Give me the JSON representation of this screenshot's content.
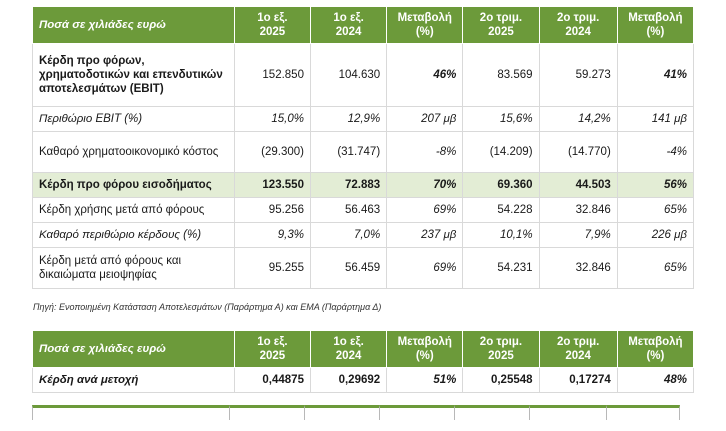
{
  "table1": {
    "headers": [
      {
        "l1": "Ποσά σε χιλιάδες ευρώ",
        "l2": ""
      },
      {
        "l1": "1ο εξ.",
        "l2": "2025"
      },
      {
        "l1": "1ο εξ.",
        "l2": "2024"
      },
      {
        "l1": "Μεταβολή",
        "l2": "(%)"
      },
      {
        "l1": "2ο τριμ.",
        "l2": "2025"
      },
      {
        "l1": "2ο τριμ.",
        "l2": "2024"
      },
      {
        "l1": "Μεταβολή",
        "l2": "(%)"
      }
    ],
    "rows": [
      {
        "label": "Κέρδη προ φόρων, χρηματοδοτικών και επενδυτικών αποτελεσμάτων (EBIT)",
        "v": [
          "152.850",
          "104.630",
          "46%",
          "83.569",
          "59.273",
          "41%"
        ]
      },
      {
        "label": "Περιθώριο EBIT (%)",
        "v": [
          "15,0%",
          "12,9%",
          "207 μβ",
          "15,6%",
          "14,2%",
          "141 μβ"
        ]
      },
      {
        "label": "Καθαρό χρηματοοικονομικό κόστος",
        "v": [
          "(29.300)",
          "(31.747)",
          "-8%",
          "(14.209)",
          "(14.770)",
          "-4%"
        ]
      },
      {
        "label": "Κέρδη προ φόρου εισοδήματος",
        "v": [
          "123.550",
          "72.883",
          "70%",
          "69.360",
          "44.503",
          "56%"
        ]
      },
      {
        "label": "Κέρδη χρήσης μετά από φόρους",
        "v": [
          "95.256",
          "56.463",
          "69%",
          "54.228",
          "32.846",
          "65%"
        ]
      },
      {
        "label": "Καθαρό περιθώριο κέρδους (%)",
        "v": [
          "9,3%",
          "7,0%",
          "237 μβ",
          "10,1%",
          "7,9%",
          "226 μβ"
        ]
      },
      {
        "label": "Κέρδη μετά από φόρους και δικαιώματα μειοψηφίας",
        "v": [
          "95.255",
          "56.459",
          "69%",
          "54.231",
          "32.846",
          "65%"
        ]
      }
    ]
  },
  "source_note": "Πηγή: Ενοποιημένη Κατάσταση Αποτελεσμάτων (Παράρτημα Α) και ΕΜΑ (Παράρτημα Δ)",
  "table2": {
    "headers": [
      {
        "l1": "Ποσά σε χιλιάδες ευρώ",
        "l2": ""
      },
      {
        "l1": "1ο εξ.",
        "l2": "2025"
      },
      {
        "l1": "1ο εξ.",
        "l2": "2024"
      },
      {
        "l1": "Μεταβολή",
        "l2": "(%)"
      },
      {
        "l1": "2ο τριμ.",
        "l2": "2025"
      },
      {
        "l1": "2ο τριμ.",
        "l2": "2024"
      },
      {
        "l1": "Μεταβολή",
        "l2": "(%)"
      }
    ],
    "rows": [
      {
        "label": "Κέρδη ανά μετοχή",
        "v": [
          "0,44875",
          "0,29692",
          "51%",
          "0,25548",
          "0,17274",
          "48%"
        ]
      }
    ]
  },
  "colors": {
    "header_green": "#6c9a3a",
    "highlight_green": "#e3edd5"
  }
}
